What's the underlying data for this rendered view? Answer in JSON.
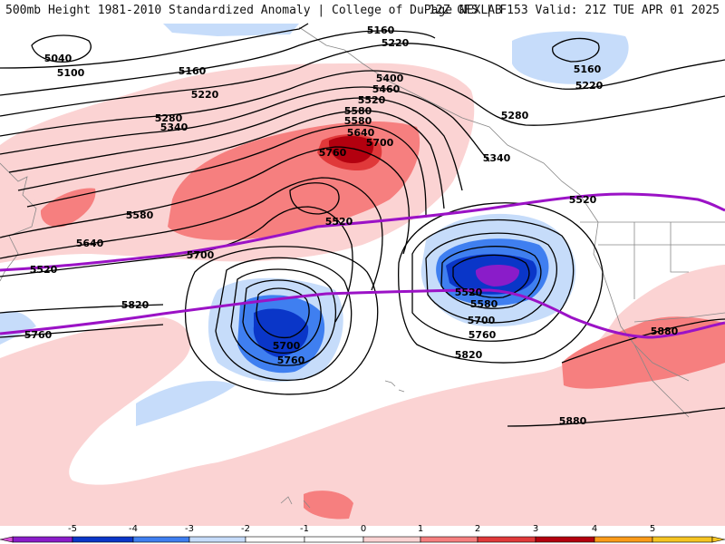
{
  "header": {
    "left": "500mb Height 1981-2010 Standardized Anomaly | College of DuPage NEXLAB",
    "right": "12Z GFS | F153 Valid: 21Z TUE APR 01 2025"
  },
  "colors": {
    "neg5": "#d64fd6",
    "neg4": "#8a1cc9",
    "neg3": "#0a36c8",
    "neg2": "#3f7ff0",
    "neg1": "#c6dcfa",
    "pos1": "#fbd3d3",
    "pos2": "#f67f7f",
    "pos3": "#e0393a",
    "pos4": "#b3000f",
    "pos5": "#fa9b1a",
    "pos6": "#f5c422",
    "contour": "#000000",
    "contour5520": "#9b12c6",
    "land": "#777777"
  },
  "contour_labels": [
    "5040",
    "5100",
    "5160",
    "5160",
    "5160",
    "5220",
    "5220",
    "5220",
    "5280",
    "5280",
    "5340",
    "5340",
    "5400",
    "5460",
    "5520",
    "5580",
    "5580",
    "5640",
    "5700",
    "5760",
    "5580",
    "5640",
    "5700",
    "5580",
    "5700",
    "5760",
    "5820",
    "5820",
    "5700",
    "5760",
    "5760",
    "5880",
    "5880"
  ],
  "label_5520": [
    "5520",
    "5520",
    "5520",
    "5520"
  ],
  "colorbar": {
    "ticks": [
      "-5",
      "-4",
      "-3",
      "-2",
      "-1",
      "0",
      "1",
      "2",
      "3",
      "4",
      "5"
    ]
  }
}
